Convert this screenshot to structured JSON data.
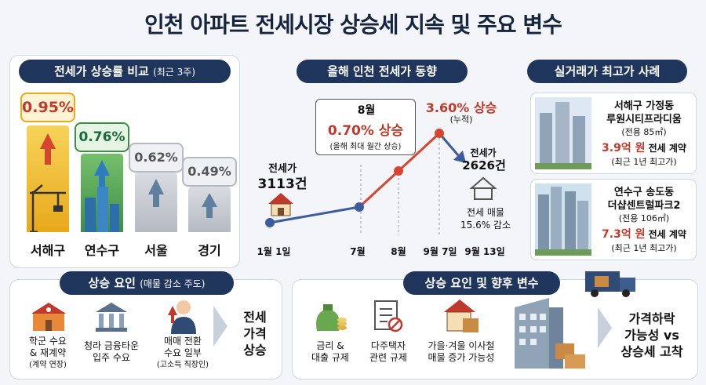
{
  "title": "인천 아파트 전세시장 상승세 지속 및 주요 변수",
  "left_panel": {
    "header": "전세가 상승률 비교",
    "header_note": "(최근 3주)",
    "bars": [
      {
        "label": "서해구",
        "value_text": "0.95%",
        "value": 0.95,
        "color": "#f3c12c",
        "badge_color": "#c0392b"
      },
      {
        "label": "연수구",
        "value_text": "0.76%",
        "value": 0.76,
        "color": "#5fae5a",
        "badge_color": "#1a6b3a"
      },
      {
        "label": "서울",
        "value_text": "0.62%",
        "value": 0.62,
        "color": "#c9cdd3",
        "badge_color": "#555"
      },
      {
        "label": "경기",
        "value_text": "0.49%",
        "value": 0.49,
        "color": "#c9cdd3",
        "badge_color": "#555"
      }
    ]
  },
  "mid_panel": {
    "header": "올해 인천 전세가 동향",
    "start_label": "전세가",
    "start_value": "3113건",
    "aug_title": "8월",
    "aug_rate": "0.70% 상승",
    "aug_note": "(올해 최대 월간 상승)",
    "peak_rate": "3.60% 상승",
    "peak_note": "(누적)",
    "end_label": "전세가",
    "end_value": "2626건",
    "supply_label": "전세 매물",
    "supply_value": "15.6% 감소",
    "x_labels": [
      "1월 1일",
      "7월",
      "8월",
      "9월 7일",
      "9월 13일"
    ]
  },
  "right_panel": {
    "header": "실거래가 최고가 사례",
    "cases": [
      {
        "district": "서해구 가정동",
        "name": "루원시티프라디움",
        "area": "(전용 85㎡)",
        "price": "3.9억 원",
        "price_suffix": " 전세 계약",
        "note": "(최근 1년 최고가)"
      },
      {
        "district": "연수구 송도동",
        "name": "더샵센트럴파크2",
        "area": "(전용 106㎡)",
        "price": "7.3억 원",
        "price_suffix": " 전세 계약",
        "note": "(최근 1년 최고가)"
      }
    ]
  },
  "bottom_left": {
    "header": "상승 요인",
    "header_note": "(매물 감소 주도)",
    "factors": [
      {
        "label": "학군 수요\n& 재계약",
        "note": "(계약 연장)",
        "icon": "school-icon"
      },
      {
        "label": "청라 금융타운\n입주 수요",
        "note": "",
        "icon": "bank-icon"
      },
      {
        "label": "매매 전환\n수요 일부",
        "note": "(고소득 직장인)",
        "icon": "person-icon"
      }
    ],
    "result": "전세\n가격\n상승"
  },
  "bottom_right": {
    "header": "상승 요인 및 향후 변수",
    "factors": [
      {
        "label": "금리 &\n대출 규제",
        "icon": "money-icon"
      },
      {
        "label": "다주택자\n관련 규제",
        "icon": "checklist-icon"
      },
      {
        "label": "가을·겨울 이사철\n매물 증가 가능성",
        "icon": "house-box-icon"
      }
    ],
    "result": "가격하락\n가능성 vs\n상승세 고착"
  }
}
